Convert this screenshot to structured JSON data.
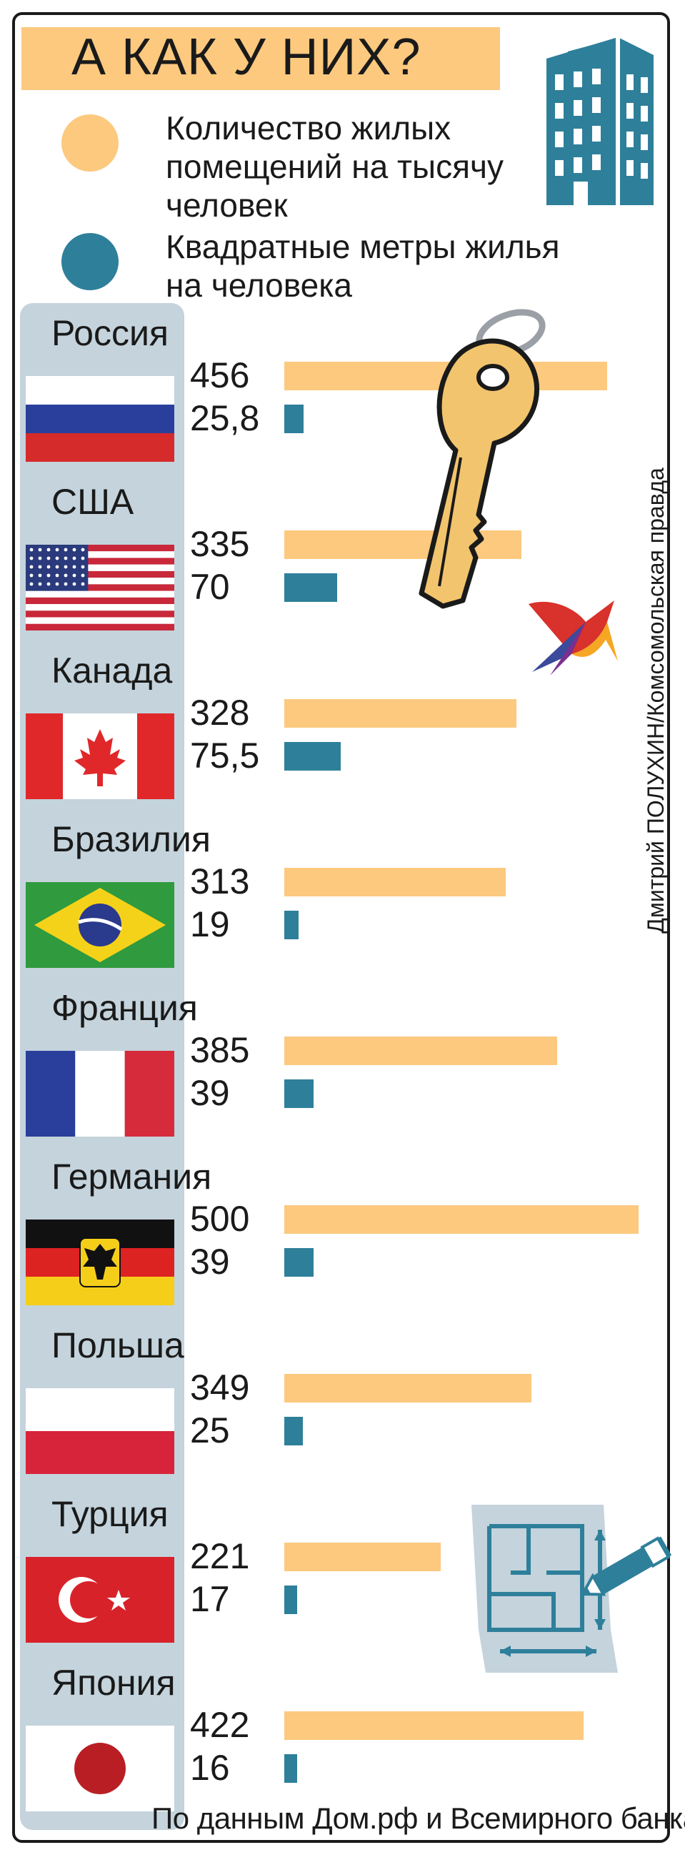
{
  "title": "А КАК У НИХ?",
  "legend": [
    {
      "label": "Количество жилых помещений на тысячу человек",
      "lines": [
        "Количество жилых",
        "помещений на тысячу",
        "человек"
      ],
      "color": "#fcc97f"
    },
    {
      "label": "Квадратные метры жилья на человека",
      "lines": [
        "Квадратные метры жилья",
        "на человека"
      ],
      "color": "#2e7f9a"
    }
  ],
  "credit": "Дмитрий ПОЛУХИН/Комсомольская правда",
  "source": "По данным Дом.рф и Всемирного банка.",
  "chart_data": {
    "type": "bar",
    "categories": [
      "Россия",
      "США",
      "Канада",
      "Бразилия",
      "Франция",
      "Германия",
      "Польша",
      "Турция",
      "Япония"
    ],
    "series": [
      {
        "name": "Количество жилых помещений на тысячу человек",
        "values": [
          456,
          335,
          328,
          313,
          385,
          500,
          349,
          221,
          422
        ],
        "labels": [
          "456",
          "335",
          "328",
          "313",
          "385",
          "500",
          "349",
          "221",
          "422"
        ],
        "color": "#fcc97f"
      },
      {
        "name": "Квадратные метры жилья на человека",
        "values": [
          25.8,
          70,
          75.5,
          19,
          39,
          39,
          25,
          17,
          16
        ],
        "labels": [
          "25,8",
          "70",
          "75,5",
          "19",
          "39",
          "39",
          "25",
          "17",
          "16"
        ],
        "color": "#2e7f9a"
      }
    ],
    "flags": [
      "russia",
      "usa",
      "canada",
      "brazil",
      "france",
      "germany",
      "poland",
      "turkey",
      "japan"
    ]
  }
}
